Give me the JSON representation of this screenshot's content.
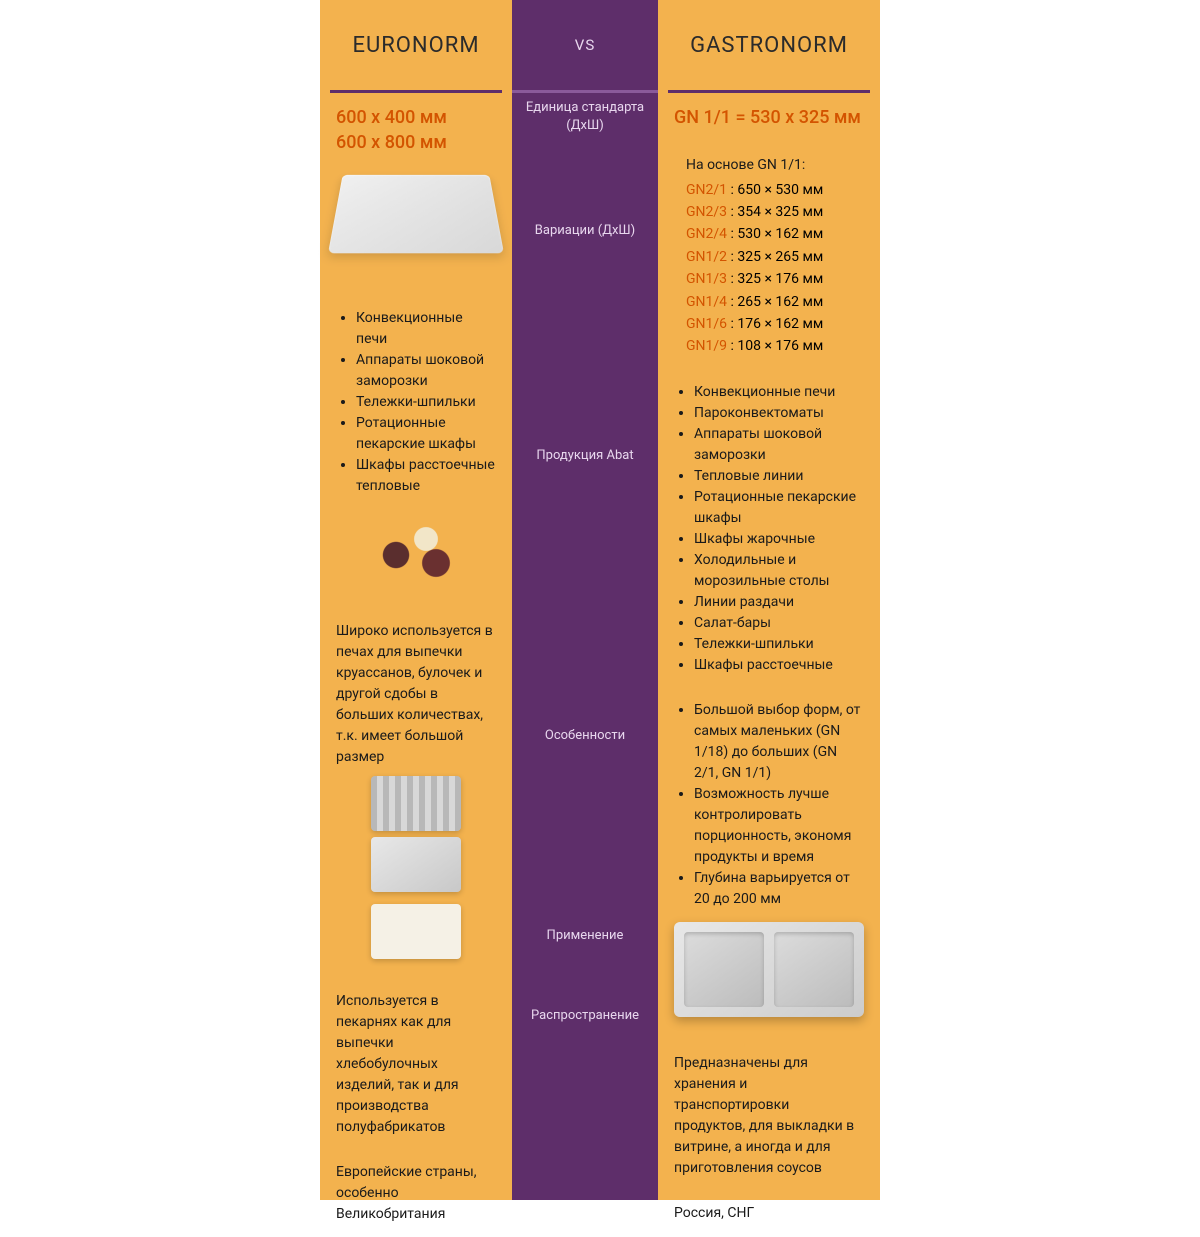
{
  "colors": {
    "left_bg": "#f3b24e",
    "right_bg": "#f3b24e",
    "center_bg": "#5e2e6a",
    "accent": "#d35400",
    "text": "#1a1a1a",
    "center_text": "#e8d7ee"
  },
  "header": {
    "left_title": "EURONORM",
    "vs": "VS",
    "right_title": "GASTRONORM"
  },
  "rows": {
    "standard": {
      "label": "Единица стандарта (ДхШ)",
      "left_line1": "600 x 400 мм",
      "left_line2": "600 x 800 мм",
      "right": "GN 1/1 = 530 x 325 мм"
    },
    "variations": {
      "label": "Вариации (ДхШ)",
      "right_intro": "На основе GN 1/1:",
      "items": [
        {
          "code": "GN2/1",
          "dims": ": 650 × 530 мм"
        },
        {
          "code": "GN2/3",
          "dims": ": 354 × 325 мм"
        },
        {
          "code": "GN2/4",
          "dims": ": 530 × 162 мм"
        },
        {
          "code": "GN1/2",
          "dims": ": 325 × 265 мм"
        },
        {
          "code": "GN1/3",
          "dims": ": 325 × 176 мм"
        },
        {
          "code": "GN1/4",
          "dims": ": 265 × 162 мм"
        },
        {
          "code": "GN1/6",
          "dims": ": 176 × 162 мм"
        },
        {
          "code": "GN1/9",
          "dims": ": 108 × 176 мм"
        }
      ]
    },
    "products": {
      "label": "Продукция Abat",
      "left": [
        "Конвекционные печи",
        "Аппараты шоковой заморозки",
        "Тележки-шпильки",
        "Ротационные пекарские шкафы",
        "Шкафы расстоечные тепловые"
      ],
      "right": [
        "Конвекционные печи",
        "Пароконвектоматы",
        "Аппараты шоковой заморозки",
        "Тепловые линии",
        "Ротационные пекарские шкафы",
        "Шкафы жарочные",
        "Холодильные и морозильные столы",
        "Линии раздачи",
        "Салат-бары",
        "Тележки-шпильки",
        "Шкафы расстоечные"
      ]
    },
    "features": {
      "label": "Особенности",
      "left_text": "Широко используется в печах для выпечки круассанов, булочек и другой сдобы в больших количествах, т.к. имеет большой размер",
      "right": [
        "Большой выбор форм, от самых маленьких (GN 1/18) до больших (GN 2/1, GN 1/1)",
        "Возможность лучше контролировать порционность, экономя продукты и время",
        "Глубина варьируется от 20 до 200 мм"
      ]
    },
    "usage": {
      "label": "Применение",
      "left": "Используется в пекарнях как для выпечки хлебобулочных изделий, так и для производства полуфабрикатов",
      "right": "Предназначены для хранения и транспортировки продуктов, для выкладки в витрине, а иногда и для приготовления соусов"
    },
    "spread": {
      "label": "Распространение",
      "left": "Европейские страны, особенно Великобритания",
      "right": "Россия, СНГ"
    }
  }
}
